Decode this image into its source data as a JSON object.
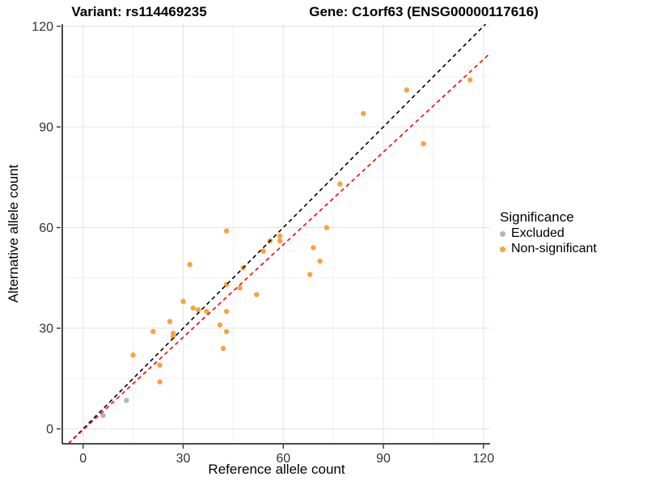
{
  "titles": {
    "variant": "Variant: rs114469235",
    "gene": "Gene: C1orf63 (ENSG00000117616)"
  },
  "chart_data": {
    "type": "scatter",
    "xlabel": "Reference allele count",
    "ylabel": "Alternative allele count",
    "xlim": [
      -6,
      122
    ],
    "ylim": [
      -4.2,
      120.6
    ],
    "x_ticks": [
      0,
      30,
      60,
      90,
      120
    ],
    "y_ticks": [
      0,
      30,
      60,
      90,
      120
    ],
    "x_minor_ticks": [
      15,
      45,
      75,
      105
    ],
    "y_minor_ticks": [
      15,
      45,
      75,
      105
    ],
    "grid": true,
    "colors": {
      "major_grid": "#e3e3e3",
      "minor_grid": "#f1f1f1",
      "axis_line": "#333333",
      "tick_text": "#333333"
    },
    "legend": {
      "title": "Significance",
      "position": "right",
      "entries": [
        {
          "label": "Excluded",
          "color": "#b5b5b5"
        },
        {
          "label": "Non-significant",
          "color": "#f8a33e"
        }
      ]
    },
    "series": [
      {
        "name": "Excluded",
        "color": "#b5b5b5",
        "points": [
          [
            6,
            4
          ],
          [
            13,
            8.5
          ]
        ]
      },
      {
        "name": "Non-significant",
        "color": "#f8a33e",
        "points": [
          [
            15,
            22
          ],
          [
            21,
            29
          ],
          [
            23,
            19
          ],
          [
            23,
            14
          ],
          [
            26,
            32
          ],
          [
            27,
            28.5
          ],
          [
            27,
            27.5
          ],
          [
            30,
            38
          ],
          [
            32,
            49
          ],
          [
            33,
            36
          ],
          [
            34.5,
            35.5
          ],
          [
            37,
            35
          ],
          [
            41,
            31
          ],
          [
            42,
            24
          ],
          [
            43,
            29
          ],
          [
            43,
            35
          ],
          [
            43,
            43
          ],
          [
            43,
            59
          ],
          [
            47,
            42
          ],
          [
            48,
            48
          ],
          [
            52,
            40
          ],
          [
            54,
            53
          ],
          [
            56,
            56
          ],
          [
            59,
            56
          ],
          [
            59,
            57.5
          ],
          [
            68,
            46
          ],
          [
            69,
            54
          ],
          [
            71,
            50
          ],
          [
            73,
            60
          ],
          [
            77,
            73
          ],
          [
            84,
            94
          ],
          [
            97,
            101
          ],
          [
            102,
            85
          ],
          [
            116,
            104
          ]
        ]
      }
    ],
    "lines": [
      {
        "name": "identity-line",
        "slope": 1,
        "intercept": 0,
        "color": "#000000",
        "dash": "5,4",
        "width": 1.6
      },
      {
        "name": "regression-line",
        "slope": 0.92,
        "intercept": -0.3,
        "color": "#ff0000",
        "dash": "5,4",
        "width": 1.6
      }
    ]
  }
}
